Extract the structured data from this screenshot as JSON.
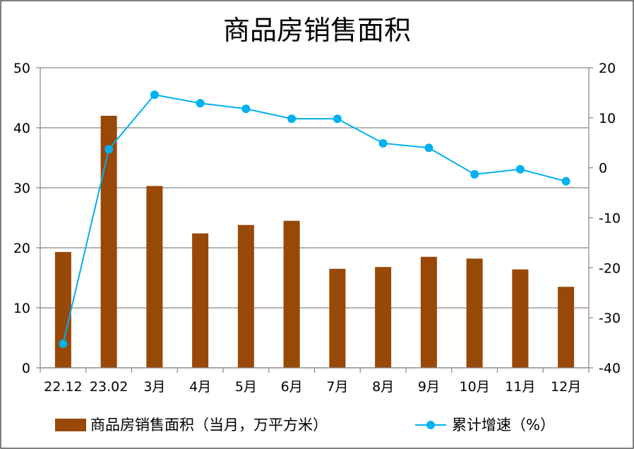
{
  "chart_data": {
    "type": "bar",
    "title": "商品房销售面积",
    "categories": [
      "22.12",
      "23.02",
      "3月",
      "4月",
      "5月",
      "6月",
      "7月",
      "8月",
      "9月",
      "10月",
      "11月",
      "12月"
    ],
    "series": [
      {
        "name": "商品房销售面积（当月，万平方米）",
        "type": "bar",
        "axis": "left",
        "color": "#984807",
        "values": [
          19.3,
          42.0,
          30.3,
          22.4,
          23.8,
          24.5,
          16.5,
          16.8,
          18.5,
          18.2,
          16.4,
          13.5
        ]
      },
      {
        "name": "累计增速（%）",
        "type": "line",
        "axis": "right",
        "color": "#00B0F0",
        "values": [
          -35.2,
          3.7,
          14.6,
          12.9,
          11.8,
          9.8,
          9.8,
          4.9,
          4.0,
          -1.3,
          -0.3,
          -2.7
        ]
      }
    ],
    "y_left": {
      "ylim": [
        0,
        50
      ],
      "ticks": [
        "0",
        "10",
        "20",
        "30",
        "40",
        "50"
      ]
    },
    "y_right": {
      "ylim": [
        -40,
        20
      ],
      "ticks": [
        "-40",
        "-30",
        "-20",
        "-10",
        "0",
        "10",
        "20"
      ]
    },
    "grid": true,
    "legend_position": "bottom"
  }
}
